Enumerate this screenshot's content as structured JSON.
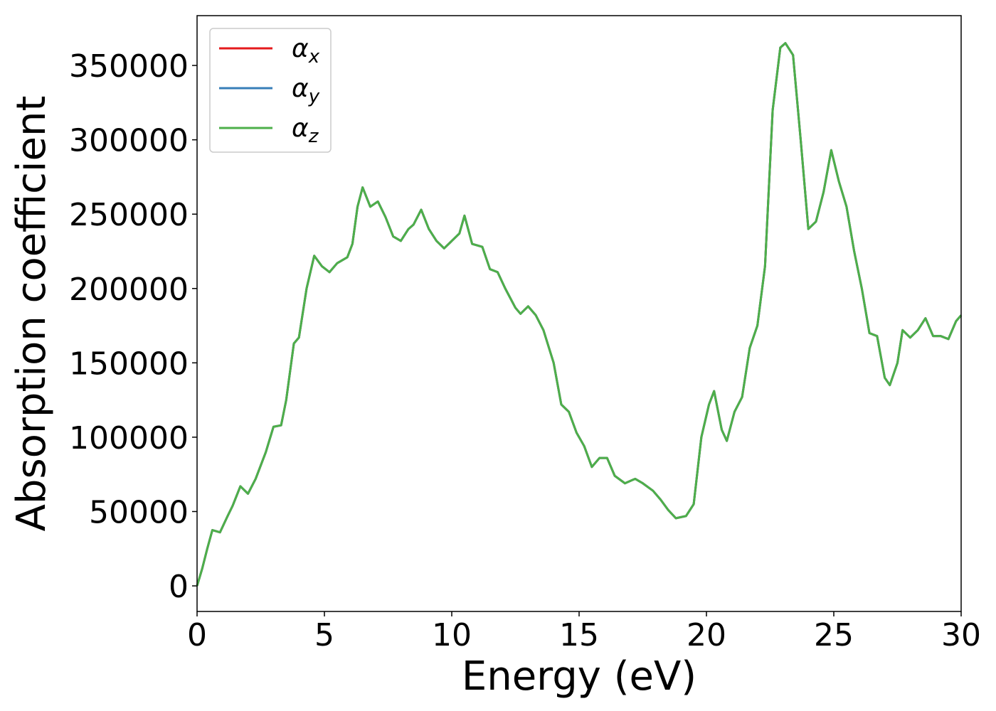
{
  "chart_data": {
    "type": "line",
    "xlabel": "Energy (eV)",
    "ylabel": "Absorption coefficient",
    "xlim": [
      0,
      30
    ],
    "ylim": [
      -17200,
      383500
    ],
    "xticks": [
      0,
      5,
      10,
      15,
      20,
      25,
      30
    ],
    "yticks": [
      0,
      50000,
      100000,
      150000,
      200000,
      250000,
      300000,
      350000
    ],
    "legend": "upper left",
    "x": [
      0,
      0.2,
      0.4,
      0.6,
      0.9,
      1.2,
      1.4,
      1.7,
      2.0,
      2.3,
      2.7,
      3.0,
      3.3,
      3.5,
      3.8,
      4.0,
      4.3,
      4.6,
      4.9,
      5.2,
      5.5,
      5.9,
      6.1,
      6.3,
      6.5,
      6.8,
      7.1,
      7.4,
      7.7,
      8.0,
      8.3,
      8.5,
      8.8,
      9.1,
      9.4,
      9.7,
      10.0,
      10.3,
      10.5,
      10.8,
      11.2,
      11.5,
      11.8,
      12.1,
      12.5,
      12.7,
      13.0,
      13.3,
      13.6,
      14.0,
      14.3,
      14.6,
      14.9,
      15.2,
      15.5,
      15.8,
      16.1,
      16.4,
      16.8,
      17.2,
      17.5,
      17.9,
      18.2,
      18.5,
      18.8,
      19.2,
      19.5,
      19.8,
      20.1,
      20.3,
      20.6,
      20.8,
      21.1,
      21.4,
      21.7,
      22.0,
      22.3,
      22.6,
      22.9,
      23.1,
      23.4,
      23.7,
      24.0,
      24.3,
      24.6,
      24.9,
      25.2,
      25.5,
      25.8,
      26.1,
      26.4,
      26.7,
      27.0,
      27.2,
      27.5,
      27.7,
      28.0,
      28.3,
      28.6,
      28.9,
      29.2,
      29.5,
      29.8,
      30.0
    ],
    "series": [
      {
        "name": "αx",
        "color": "#e41a1c",
        "values": [
          0,
          11500,
          25000,
          37500,
          36000,
          47000,
          54000,
          67000,
          62000,
          72000,
          90000,
          107000,
          108000,
          125000,
          163000,
          167000,
          200000,
          222000,
          215000,
          211000,
          217000,
          221000,
          230000,
          255000,
          268000,
          255000,
          258500,
          248000,
          235000,
          232000,
          240000,
          243000,
          253000,
          240000,
          232000,
          227000,
          232000,
          237000,
          249000,
          230000,
          228000,
          213000,
          211000,
          200000,
          187000,
          183000,
          188000,
          182000,
          172000,
          150000,
          122000,
          117000,
          103000,
          94000,
          80000,
          86000,
          86000,
          74000,
          69000,
          72000,
          69000,
          64000,
          58000,
          51000,
          45500,
          47000,
          55000,
          100000,
          122000,
          131000,
          105000,
          97500,
          117000,
          127000,
          160000,
          175000,
          215000,
          320000,
          362000,
          365000,
          357000,
          300000,
          240000,
          245000,
          265000,
          293000,
          272000,
          255000,
          225000,
          200000,
          170000,
          168000,
          140000,
          135000,
          150000,
          172000,
          167000,
          172000,
          180000,
          168000,
          168000,
          166000,
          178000,
          182000
        ]
      },
      {
        "name": "αy",
        "color": "#377eb8",
        "values": [
          0,
          11500,
          25000,
          37500,
          36000,
          47000,
          54000,
          67000,
          62000,
          72000,
          90000,
          107000,
          108000,
          125000,
          163000,
          167000,
          200000,
          222000,
          215000,
          211000,
          217000,
          221000,
          230000,
          255000,
          268000,
          255000,
          258500,
          248000,
          235000,
          232000,
          240000,
          243000,
          253000,
          240000,
          232000,
          227000,
          232000,
          237000,
          249000,
          230000,
          228000,
          213000,
          211000,
          200000,
          187000,
          183000,
          188000,
          182000,
          172000,
          150000,
          122000,
          117000,
          103000,
          94000,
          80000,
          86000,
          86000,
          74000,
          69000,
          72000,
          69000,
          64000,
          58000,
          51000,
          45500,
          47000,
          55000,
          100000,
          122000,
          131000,
          105000,
          97500,
          117000,
          127000,
          160000,
          175000,
          215000,
          320000,
          362000,
          365000,
          357000,
          300000,
          240000,
          245000,
          265000,
          293000,
          272000,
          255000,
          225000,
          200000,
          170000,
          168000,
          140000,
          135000,
          150000,
          172000,
          167000,
          172000,
          180000,
          168000,
          168000,
          166000,
          178000,
          182000
        ]
      },
      {
        "name": "αz",
        "color": "#4daf4a",
        "values": [
          0,
          11500,
          25000,
          37500,
          36000,
          47000,
          54000,
          67000,
          62000,
          72000,
          90000,
          107000,
          108000,
          125000,
          163000,
          167000,
          200000,
          222000,
          215000,
          211000,
          217000,
          221000,
          230000,
          255000,
          268000,
          255000,
          258500,
          248000,
          235000,
          232000,
          240000,
          243000,
          253000,
          240000,
          232000,
          227000,
          232000,
          237000,
          249000,
          230000,
          228000,
          213000,
          211000,
          200000,
          187000,
          183000,
          188000,
          182000,
          172000,
          150000,
          122000,
          117000,
          103000,
          94000,
          80000,
          86000,
          86000,
          74000,
          69000,
          72000,
          69000,
          64000,
          58000,
          51000,
          45500,
          47000,
          55000,
          100000,
          122000,
          131000,
          105000,
          97500,
          117000,
          127000,
          160000,
          175000,
          215000,
          320000,
          362000,
          365000,
          357000,
          300000,
          240000,
          245000,
          265000,
          293000,
          272000,
          255000,
          225000,
          200000,
          170000,
          168000,
          140000,
          135000,
          150000,
          172000,
          167000,
          172000,
          180000,
          168000,
          168000,
          166000,
          178000,
          182000
        ]
      }
    ]
  }
}
